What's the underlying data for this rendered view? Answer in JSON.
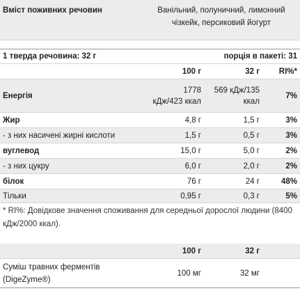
{
  "header": {
    "title": "Вміст поживних речовин",
    "flavors": "Ванільний, полуничний, лимонний чізкейк, персиковий йогурт"
  },
  "serving": {
    "unit": "1 тверда речовина: 32 г",
    "portions": "порція в пакеті: 31"
  },
  "nutrition": {
    "columns": [
      "100 г",
      "32 г",
      "RI%*"
    ],
    "rows": [
      [
        "Енергія",
        "1778 кДж/423 ккал",
        "569 кДж/135 ккал",
        "7%"
      ],
      [
        "Жир",
        "4,8 г",
        "1,5 г",
        "3%"
      ],
      [
        "- з них насичені жирні кислоти",
        "1,5 г",
        "0,5 г",
        "3%"
      ],
      [
        "вуглевод",
        "15,0 г",
        "5,0 г",
        "2%"
      ],
      [
        "- з них цукру",
        "6,0 г",
        "2,0 г",
        "2%"
      ],
      [
        "білок",
        "76 г",
        "24 г",
        "48%"
      ],
      [
        "Тільки",
        "0,95 г",
        "0,3 г",
        "5%"
      ]
    ]
  },
  "footnote": "* RI%: Довідкове значення споживання для середньої дорослої людини (8400 кДж/2000 ккал).",
  "enzymes": {
    "columns": [
      "100 г",
      "32 г"
    ],
    "rows": [
      [
        "Суміш травних ферментів (DigeZyme®)",
        "100 мг",
        "32 мг"
      ]
    ]
  }
}
